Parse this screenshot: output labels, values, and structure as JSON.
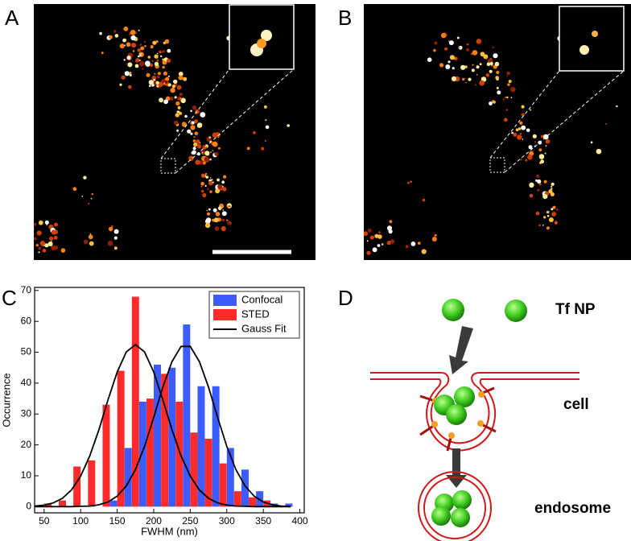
{
  "panels": {
    "labels": [
      "A",
      "B",
      "C",
      "D"
    ]
  },
  "diagram": {
    "labels": [
      "Tf NP",
      "cell",
      "endosome"
    ]
  },
  "chart_data": {
    "type": "bar",
    "xlabel": "FWHM (nm)",
    "ylabel": "Occurrence",
    "xlim": [
      37,
      406
    ],
    "ylim": [
      -2,
      71
    ],
    "xticks": [
      50,
      100,
      150,
      200,
      250,
      300,
      350,
      400
    ],
    "yticks": [
      0,
      10,
      20,
      30,
      40,
      50,
      60,
      70
    ],
    "legend": "upper right",
    "series": [
      {
        "name": "Confocal",
        "color": "#3d5cff",
        "x": [
          145,
          165,
          185,
          205,
          225,
          245,
          265,
          285,
          305,
          325,
          345,
          365,
          385
        ],
        "values": [
          2,
          19,
          34,
          46,
          45,
          59,
          39,
          39,
          19,
          12,
          5,
          1,
          1
        ]
      },
      {
        "name": "STED",
        "color": "#ff2a2a",
        "x": [
          55,
          75,
          95,
          115,
          135,
          155,
          175,
          195,
          215,
          235,
          255,
          275,
          295,
          315,
          335,
          355
        ],
        "values": [
          1,
          2,
          13,
          15,
          33,
          44,
          68,
          35,
          43,
          34,
          24,
          22,
          14,
          5,
          3,
          2
        ]
      },
      {
        "name": "Gauss Fit",
        "type": "line",
        "color": "#000000",
        "x": [
          37.5,
          50,
          62.5,
          75,
          87.5,
          100,
          112.5,
          125,
          137.5,
          150,
          162.5,
          175,
          187.5,
          200,
          212.5,
          225,
          237.5,
          250,
          262.5,
          275,
          287.5,
          300,
          312.5,
          325,
          337.5,
          350,
          362.5,
          375,
          387.5
        ],
        "values": [
          0.2,
          0.5,
          1.2,
          2.7,
          5.4,
          9.9,
          16.4,
          24.9,
          34.6,
          43.6,
          50.1,
          52.5,
          50.1,
          43.6,
          34.6,
          24.9,
          16.4,
          9.9,
          5.4,
          2.7,
          1.2,
          0.5,
          0.2,
          0.1,
          0,
          0,
          0,
          0,
          0
        ]
      },
      {
        "type": "line",
        "color": "#000000",
        "x": [
          37.5,
          50,
          62.5,
          75,
          87.5,
          100,
          112.5,
          125,
          137.5,
          150,
          162.5,
          175,
          187.5,
          200,
          212.5,
          225,
          237.5,
          250,
          262.5,
          275,
          287.5,
          300,
          312.5,
          325,
          337.5,
          350,
          362.5,
          375,
          387.5
        ],
        "values": [
          0,
          0,
          0,
          0,
          0,
          0.1,
          0.2,
          0.6,
          1.5,
          3.4,
          6.7,
          12.0,
          19.5,
          28.9,
          38.7,
          47.0,
          51.9,
          51.9,
          47.0,
          38.7,
          28.9,
          19.5,
          12.0,
          6.7,
          3.4,
          1.5,
          0.6,
          0.2,
          0.1
        ]
      }
    ]
  }
}
